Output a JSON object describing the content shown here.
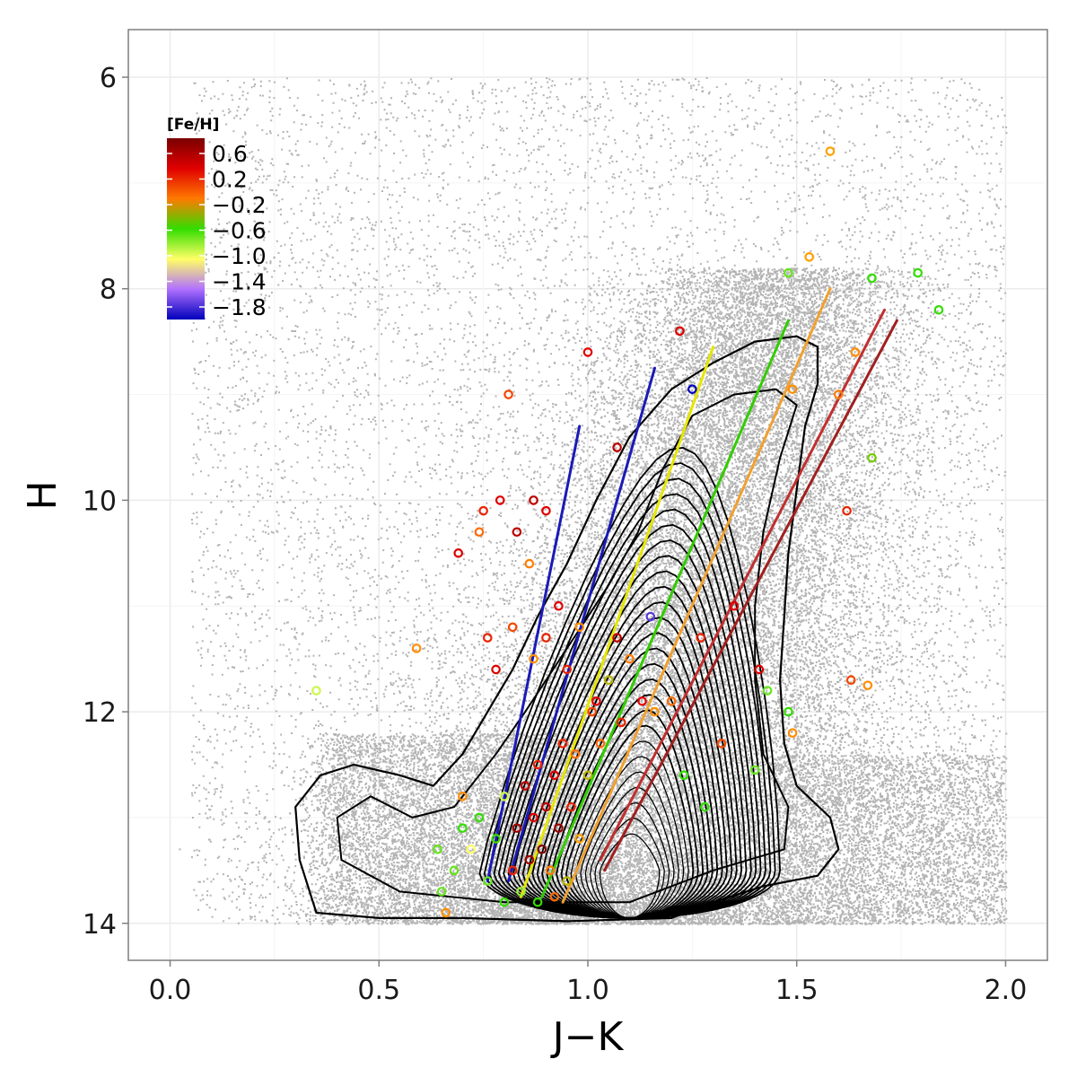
{
  "chart_data": {
    "type": "scatter",
    "title": "",
    "xlabel": "J−K",
    "ylabel": "H",
    "xlim": [
      -0.1,
      2.1
    ],
    "ylim": [
      14.35,
      5.55
    ],
    "y_inverted": true,
    "x_ticks": [
      "0.0",
      "0.5",
      "1.0",
      "1.5",
      "2.0"
    ],
    "y_ticks": [
      "6",
      "8",
      "10",
      "12",
      "14"
    ],
    "grid": true,
    "legend_placement": "top-left",
    "legend": {
      "title": "[Fe/H]",
      "type": "colorbar",
      "labels": [
        "0.6",
        "0.2",
        "−0.2",
        "−0.6",
        "−1.0",
        "−1.4",
        "−1.8"
      ],
      "colors": [
        "#7a0000",
        "#e00000",
        "#ff7a00",
        "#33dd00",
        "#ffff66",
        "#b070ff",
        "#0000bb"
      ]
    },
    "background_points": {
      "color": "#b3b3b3",
      "description_of_density": "field stars; dense wedge from (0.3-1.6, 14) narrowing to (1.3-1.6, 8)"
    },
    "contours": {
      "color": "#000000",
      "center": [
        1.1,
        13.5
      ]
    },
    "isochrones": [
      {
        "feh": -1.8,
        "color": "#1a1ab8",
        "points": [
          [
            0.76,
            13.6
          ],
          [
            0.98,
            9.3
          ]
        ]
      },
      {
        "feh": -1.6,
        "color": "#1a1ab8",
        "points": [
          [
            0.81,
            13.6
          ],
          [
            1.16,
            8.75
          ]
        ]
      },
      {
        "feh": -1.0,
        "color": "#e6e600",
        "points": [
          [
            0.84,
            13.75
          ],
          [
            1.3,
            8.55
          ]
        ]
      },
      {
        "feh": -0.6,
        "color": "#33cc00",
        "points": [
          [
            0.89,
            13.75
          ],
          [
            1.48,
            8.3
          ]
        ]
      },
      {
        "feh": -0.2,
        "color": "#f0a030",
        "points": [
          [
            0.94,
            13.8
          ],
          [
            1.58,
            8.0
          ]
        ]
      },
      {
        "feh": 0.4,
        "color": "#c03030",
        "points": [
          [
            1.03,
            13.4
          ],
          [
            1.71,
            8.2
          ]
        ]
      },
      {
        "feh": 0.6,
        "color": "#a02020",
        "points": [
          [
            1.04,
            13.5
          ],
          [
            1.74,
            8.3
          ]
        ]
      }
    ],
    "highlighted_stars": [
      {
        "x": 0.35,
        "y": 11.8,
        "feh": -0.9
      },
      {
        "x": 0.59,
        "y": 11.4,
        "feh": -0.2
      },
      {
        "x": 0.69,
        "y": 10.5,
        "feh": 0.3
      },
      {
        "x": 0.74,
        "y": 10.3,
        "feh": 0.0
      },
      {
        "x": 0.75,
        "y": 10.1,
        "feh": 0.2
      },
      {
        "x": 0.79,
        "y": 10.0,
        "feh": 0.3
      },
      {
        "x": 0.81,
        "y": 9.0,
        "feh": 0.1
      },
      {
        "x": 0.83,
        "y": 10.3,
        "feh": 0.4
      },
      {
        "x": 0.87,
        "y": 10.0,
        "feh": 0.4
      },
      {
        "x": 0.86,
        "y": 10.6,
        "feh": -0.1
      },
      {
        "x": 0.9,
        "y": 10.1,
        "feh": 0.3
      },
      {
        "x": 1.0,
        "y": 8.6,
        "feh": 0.3
      },
      {
        "x": 1.07,
        "y": 9.5,
        "feh": 0.4
      },
      {
        "x": 1.22,
        "y": 8.4,
        "feh": 0.3
      },
      {
        "x": 1.25,
        "y": 8.95,
        "feh": -1.8
      },
      {
        "x": 1.58,
        "y": 6.7,
        "feh": -0.3
      },
      {
        "x": 1.48,
        "y": 7.85,
        "feh": -0.7
      },
      {
        "x": 1.53,
        "y": 7.7,
        "feh": -0.3
      },
      {
        "x": 1.68,
        "y": 7.9,
        "feh": -0.6
      },
      {
        "x": 1.79,
        "y": 7.85,
        "feh": -0.6
      },
      {
        "x": 1.84,
        "y": 8.2,
        "feh": -0.6
      },
      {
        "x": 1.49,
        "y": 8.95,
        "feh": -0.2
      },
      {
        "x": 1.68,
        "y": 9.6,
        "feh": -0.5
      },
      {
        "x": 1.62,
        "y": 10.1,
        "feh": 0.2
      },
      {
        "x": 1.6,
        "y": 9.0,
        "feh": -0.1
      },
      {
        "x": 1.64,
        "y": 8.6,
        "feh": -0.2
      },
      {
        "x": 1.35,
        "y": 11.0,
        "feh": 0.3
      },
      {
        "x": 1.41,
        "y": 11.6,
        "feh": 0.3
      },
      {
        "x": 1.43,
        "y": 11.8,
        "feh": -0.7
      },
      {
        "x": 1.48,
        "y": 12.0,
        "feh": -0.6
      },
      {
        "x": 1.49,
        "y": 12.2,
        "feh": -0.2
      },
      {
        "x": 1.63,
        "y": 11.7,
        "feh": 0.1
      },
      {
        "x": 1.67,
        "y": 11.75,
        "feh": -0.2
      },
      {
        "x": 1.28,
        "y": 12.9,
        "feh": -0.6
      },
      {
        "x": 1.4,
        "y": 12.55,
        "feh": -0.7
      },
      {
        "x": 1.23,
        "y": 12.6,
        "feh": -0.6
      },
      {
        "x": 1.32,
        "y": 12.3,
        "feh": 0.1
      },
      {
        "x": 1.27,
        "y": 11.3,
        "feh": 0.2
      },
      {
        "x": 1.15,
        "y": 11.1,
        "feh": -1.6
      },
      {
        "x": 1.2,
        "y": 11.9,
        "feh": 0.0
      },
      {
        "x": 0.95,
        "y": 11.6,
        "feh": 0.2
      },
      {
        "x": 0.98,
        "y": 11.2,
        "feh": -0.2
      },
      {
        "x": 1.02,
        "y": 11.9,
        "feh": 0.3
      },
      {
        "x": 1.05,
        "y": 11.7,
        "feh": -0.4
      },
      {
        "x": 1.08,
        "y": 12.1,
        "feh": 0.2
      },
      {
        "x": 1.1,
        "y": 11.5,
        "feh": -0.1
      },
      {
        "x": 1.13,
        "y": 11.9,
        "feh": 0.3
      },
      {
        "x": 1.16,
        "y": 12.0,
        "feh": -0.2
      },
      {
        "x": 1.03,
        "y": 12.3,
        "feh": 0.0
      },
      {
        "x": 1.07,
        "y": 11.3,
        "feh": 0.4
      },
      {
        "x": 0.76,
        "y": 11.3,
        "feh": 0.2
      },
      {
        "x": 0.78,
        "y": 11.6,
        "feh": 0.3
      },
      {
        "x": 0.82,
        "y": 11.2,
        "feh": 0.1
      },
      {
        "x": 0.87,
        "y": 11.5,
        "feh": -0.2
      },
      {
        "x": 0.9,
        "y": 11.3,
        "feh": 0.2
      },
      {
        "x": 0.93,
        "y": 11.0,
        "feh": 0.3
      },
      {
        "x": 0.7,
        "y": 12.8,
        "feh": -0.2
      },
      {
        "x": 0.64,
        "y": 13.3,
        "feh": -0.7
      },
      {
        "x": 0.65,
        "y": 13.7,
        "feh": -0.7
      },
      {
        "x": 0.66,
        "y": 13.9,
        "feh": -0.2
      },
      {
        "x": 0.68,
        "y": 13.5,
        "feh": -0.7
      },
      {
        "x": 0.7,
        "y": 13.1,
        "feh": -0.6
      },
      {
        "x": 0.72,
        "y": 13.3,
        "feh": -1.0
      },
      {
        "x": 0.74,
        "y": 13.0,
        "feh": -0.6
      },
      {
        "x": 0.76,
        "y": 13.6,
        "feh": -0.7
      },
      {
        "x": 0.78,
        "y": 13.2,
        "feh": -0.6
      },
      {
        "x": 0.8,
        "y": 12.8,
        "feh": -0.9
      },
      {
        "x": 0.82,
        "y": 13.5,
        "feh": 0.2
      },
      {
        "x": 0.83,
        "y": 13.1,
        "feh": 0.5
      },
      {
        "x": 0.85,
        "y": 12.7,
        "feh": 0.4
      },
      {
        "x": 0.86,
        "y": 13.4,
        "feh": 0.5
      },
      {
        "x": 0.87,
        "y": 13.0,
        "feh": 0.3
      },
      {
        "x": 0.88,
        "y": 12.5,
        "feh": 0.2
      },
      {
        "x": 0.89,
        "y": 13.3,
        "feh": 0.6
      },
      {
        "x": 0.9,
        "y": 12.9,
        "feh": 0.4
      },
      {
        "x": 0.91,
        "y": 13.5,
        "feh": -0.1
      },
      {
        "x": 0.92,
        "y": 12.6,
        "feh": 0.3
      },
      {
        "x": 0.93,
        "y": 13.1,
        "feh": 0.5
      },
      {
        "x": 0.94,
        "y": 12.3,
        "feh": 0.2
      },
      {
        "x": 0.95,
        "y": 13.6,
        "feh": -0.4
      },
      {
        "x": 0.96,
        "y": 12.9,
        "feh": 0.2
      },
      {
        "x": 0.97,
        "y": 12.4,
        "feh": 0.0
      },
      {
        "x": 0.98,
        "y": 13.2,
        "feh": -0.3
      },
      {
        "x": 1.0,
        "y": 12.6,
        "feh": -0.4
      },
      {
        "x": 1.01,
        "y": 12.0,
        "feh": 0.1
      },
      {
        "x": 0.8,
        "y": 13.8,
        "feh": -0.6
      },
      {
        "x": 0.84,
        "y": 13.7,
        "feh": -0.8
      },
      {
        "x": 0.88,
        "y": 13.8,
        "feh": -0.6
      },
      {
        "x": 0.92,
        "y": 13.75,
        "feh": 0.0
      }
    ]
  }
}
